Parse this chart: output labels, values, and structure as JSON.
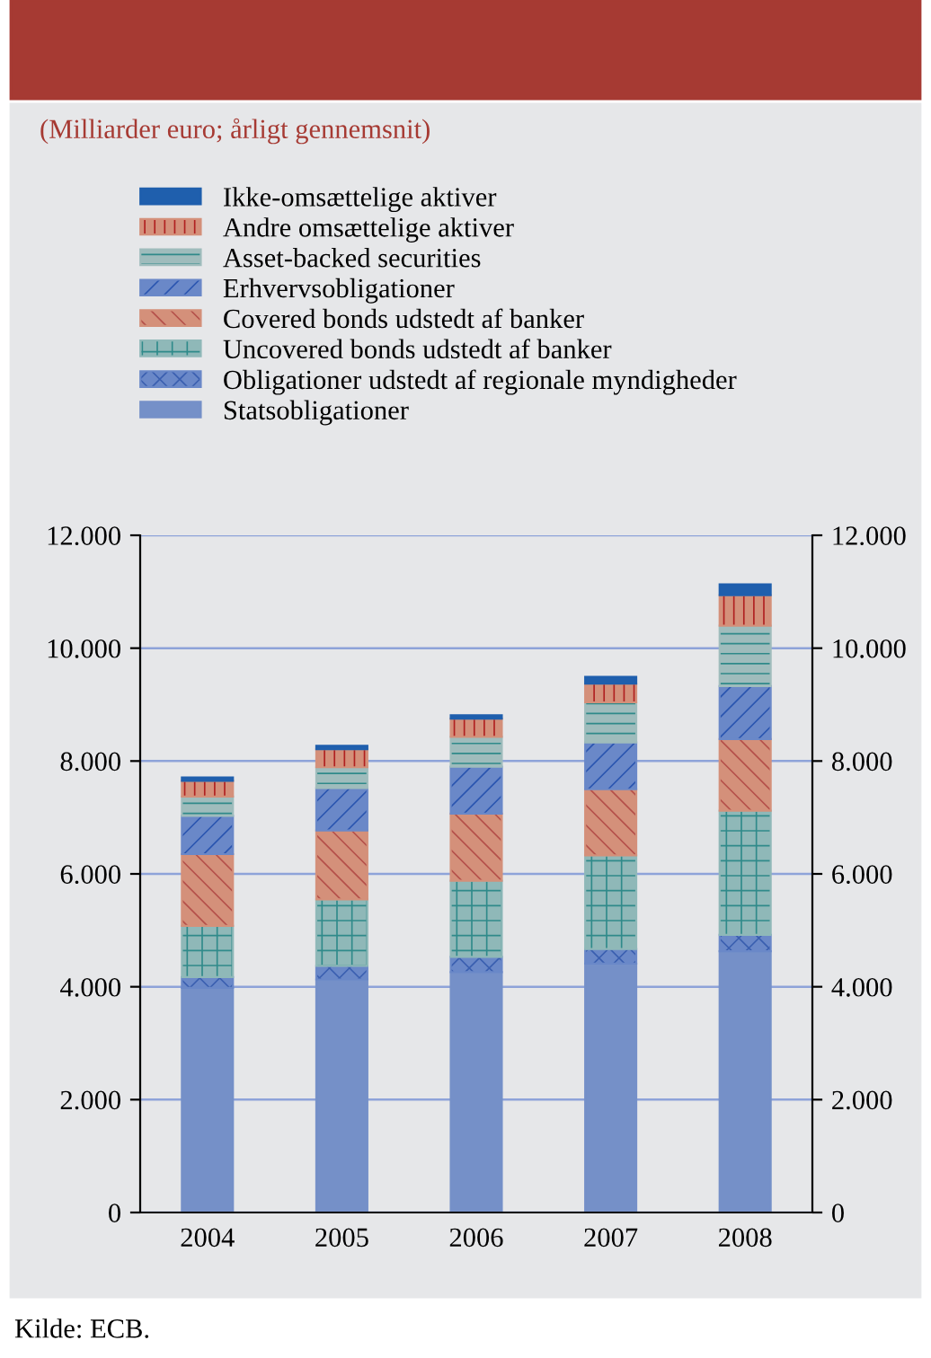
{
  "chart_data": {
    "type": "bar",
    "stacked": true,
    "subtitle": "(Milliarder euro; årligt gennemsnit)",
    "categories": [
      "2004",
      "2005",
      "2006",
      "2007",
      "2008"
    ],
    "series": [
      {
        "name": "Statsobligationer",
        "color": "#7590c8",
        "values": [
          3980,
          4130,
          4260,
          4410,
          4630
        ]
      },
      {
        "name": "Obligationer udstedt af regionale myndigheder",
        "color": "#6a88c8",
        "values": [
          190,
          240,
          270,
          260,
          290
        ]
      },
      {
        "name": "Uncovered bonds udstedt af banker",
        "color": "#8fb8b8",
        "values": [
          910,
          1180,
          1350,
          1660,
          2200
        ]
      },
      {
        "name": "Covered bonds udstedt af banker",
        "color": "#d4907a",
        "values": [
          1270,
          1220,
          1190,
          1170,
          1270
        ]
      },
      {
        "name": "Erhvervsobligationer",
        "color": "#6a88c8",
        "values": [
          680,
          750,
          830,
          830,
          940
        ]
      },
      {
        "name": "Asset-backed securities",
        "color": "#9fbcbc",
        "values": [
          340,
          370,
          530,
          710,
          1070
        ]
      },
      {
        "name": "Andre omsættelige aktiver",
        "color": "#d4907a",
        "values": [
          280,
          320,
          320,
          330,
          540
        ]
      },
      {
        "name": "Ikke-omsættelige aktiver",
        "color": "#1f5fad",
        "values": [
          60,
          60,
          60,
          120,
          190
        ]
      }
    ],
    "ylim": [
      0,
      12000
    ],
    "yticks": [
      0,
      {
        "value": 2000,
        "label": "2.000"
      },
      {
        "value": 4000,
        "label": "4.000"
      },
      {
        "value": 6000,
        "label": "6.000"
      },
      {
        "value": 8000,
        "label": "8.000"
      },
      {
        "value": 10000,
        "label": "10.000"
      },
      {
        "value": 12000,
        "label": "12.000"
      }
    ],
    "y2lim": [
      0,
      12000
    ],
    "y2ticks": [
      0,
      {
        "value": 2000,
        "label": "2.000"
      },
      {
        "value": 4000,
        "label": "4.000"
      },
      {
        "value": 6000,
        "label": "6.000"
      },
      {
        "value": 8000,
        "label": "8.000"
      },
      {
        "value": 10000,
        "label": "10.000"
      },
      {
        "value": 12000,
        "label": "12.000"
      }
    ],
    "grid": true,
    "legend": "top",
    "annotations": [
      "Kilde: ECB."
    ]
  }
}
